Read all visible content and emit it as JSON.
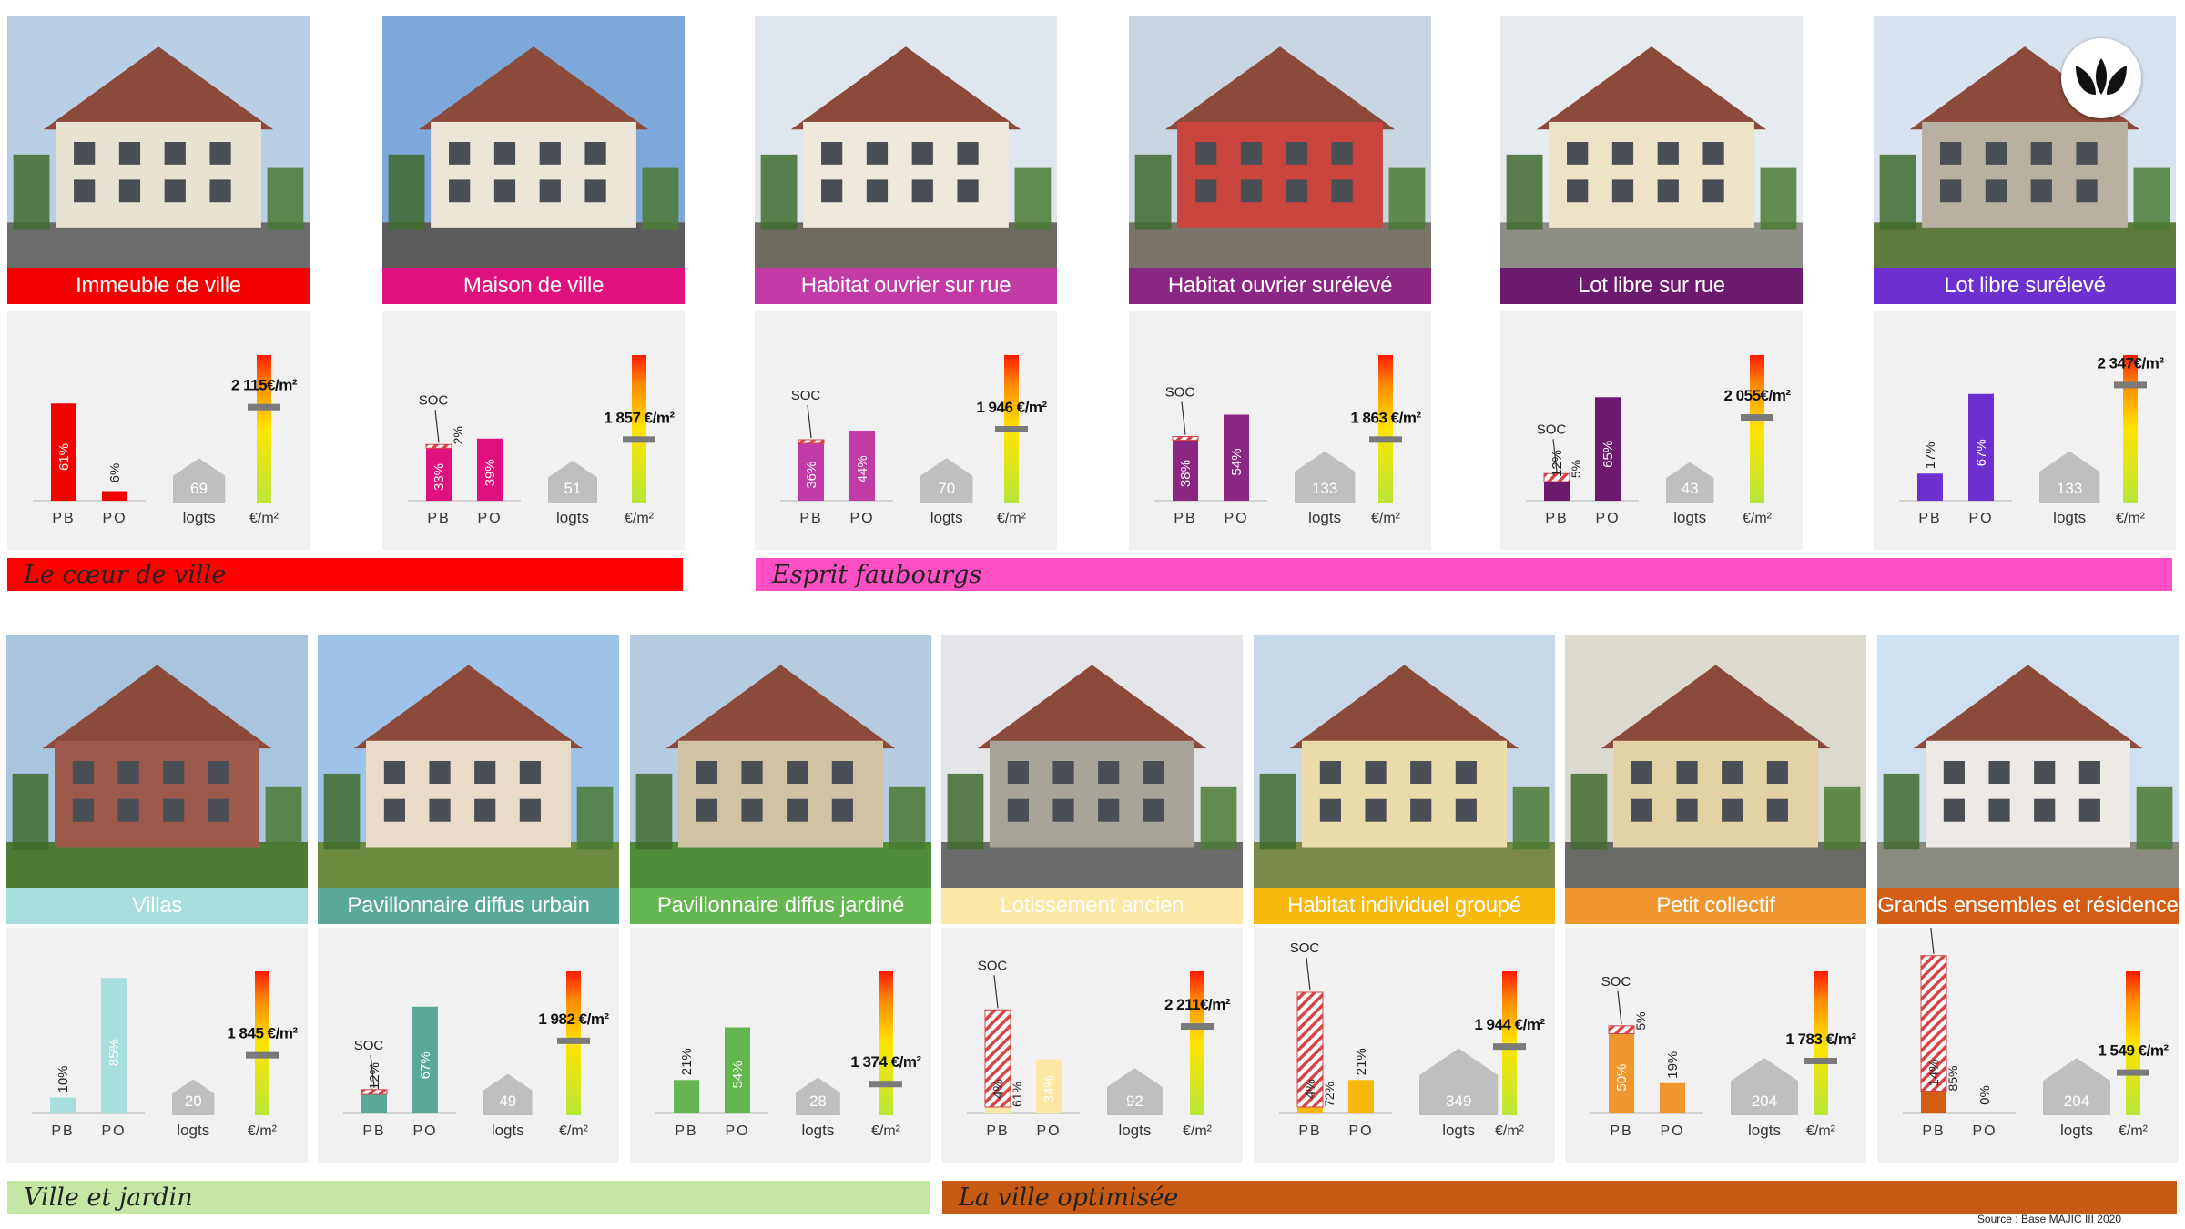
{
  "bands": [
    {
      "label": "Le cœur de ville",
      "color": "#ff0000"
    },
    {
      "label": "Esprit faubourgs",
      "color": "#ff4fc4"
    },
    {
      "label": "Ville et jardin",
      "color": "#c6e6a4"
    },
    {
      "label": "La ville optimisée",
      "color": "#c75a12"
    }
  ],
  "source": "Source : Base MAJIC III 2020",
  "logo_icon": "leaf-logo-icon",
  "axis_labels": {
    "pb": "PB",
    "po": "PO",
    "logts": "logts",
    "price": "€/m²",
    "soc": "SOC"
  },
  "cards": [
    {
      "title": "Immeuble de ville",
      "color": "#f30000",
      "pb": 61,
      "po": 6,
      "soc": null,
      "pb_label": "61%",
      "po_label": "6%",
      "soc_label": "",
      "logts": 69,
      "price": "2 115€/m²",
      "price_level": 0.65
    },
    {
      "title": "Maison de ville",
      "color": "#e0107f",
      "pb": 33,
      "po": 39,
      "soc": 2,
      "pb_label": "33%",
      "po_label": "39%",
      "soc_label": "2%",
      "logts": 51,
      "price": "1 857 €/m²",
      "price_level": 0.43
    },
    {
      "title": "Habitat ouvrier sur rue",
      "color": "#c23aa5",
      "pb": 36,
      "po": 44,
      "soc": 1,
      "pb_label": "36%",
      "po_label": "44%",
      "soc_label": "",
      "logts": 70,
      "price": "1 946 €/m²",
      "price_level": 0.5
    },
    {
      "title": "Habitat ouvrier surélevé",
      "color": "#8b2683",
      "pb": 38,
      "po": 54,
      "soc": 1,
      "pb_label": "38%",
      "po_label": "54%",
      "soc_label": "",
      "logts": 133,
      "price": "1 863 €/m²",
      "price_level": 0.43
    },
    {
      "title": "Lot libre sur rue",
      "color": "#6b1a6e",
      "pb": 12,
      "po": 65,
      "soc": 5,
      "pb_label": "12%",
      "po_label": "65%",
      "soc_label": "5%",
      "logts": 43,
      "price": "2 055€/m²",
      "price_level": 0.58
    },
    {
      "title": "Lot libre surélevé",
      "color": "#6d2fd0",
      "pb": 17,
      "po": 67,
      "soc": 0,
      "pb_label": "17%",
      "po_label": "67%",
      "soc_label": "",
      "logts": 133,
      "price": "2 347€/m²",
      "price_level": 0.8
    },
    {
      "title": "Villas",
      "color": "#a8dedc",
      "pb": 10,
      "po": 85,
      "soc": null,
      "pb_label": "10%",
      "po_label": "85%",
      "soc_label": "",
      "logts": 20,
      "price": "1 845 €/m²",
      "price_level": 0.42
    },
    {
      "title": "Pavillonnaire diffus urbain",
      "color": "#5aa897",
      "pb": 12,
      "po": 67,
      "soc": 3,
      "pb_label": "12%",
      "po_label": "67%",
      "soc_label": "",
      "logts": 49,
      "price": "1 982 €/m²",
      "price_level": 0.52
    },
    {
      "title": "Pavillonnaire diffus jardiné",
      "color": "#63b650",
      "pb": 21,
      "po": 54,
      "soc": null,
      "pb_label": "21%",
      "po_label": "54%",
      "soc_label": "",
      "logts": 28,
      "price": "1 374 €/m²",
      "price_level": 0.22
    },
    {
      "title": "Lotissement ancien",
      "color": "#fde7a4",
      "pb": 4,
      "po": 34,
      "soc": 61,
      "pb_label": "4%",
      "po_label": "34%",
      "soc_label": "61%",
      "logts": 92,
      "price": "2 211€/m²",
      "price_level": 0.62
    },
    {
      "title": "Habitat individuel groupé",
      "color": "#f8b90c",
      "pb": 4,
      "po": 21,
      "soc": 72,
      "pb_label": "4%",
      "po_label": "21%",
      "soc_label": "72%",
      "logts": 349,
      "price": "1 944 €/m²",
      "price_level": 0.48
    },
    {
      "title": "Petit collectif",
      "color": "#f0962e",
      "pb": 50,
      "po": 19,
      "soc": 5,
      "pb_label": "50%",
      "po_label": "19%",
      "soc_label": "5%",
      "logts": 204,
      "price": "1 783 €/m²",
      "price_level": 0.38
    },
    {
      "title": "Grands ensembles et résidence",
      "color": "#d35d14",
      "pb": 14,
      "po": 0,
      "soc": 85,
      "pb_label": "14%",
      "po_label": "0%",
      "soc_label": "85%",
      "logts": 204,
      "price": "1 549 €/m²",
      "price_level": 0.3
    }
  ]
}
